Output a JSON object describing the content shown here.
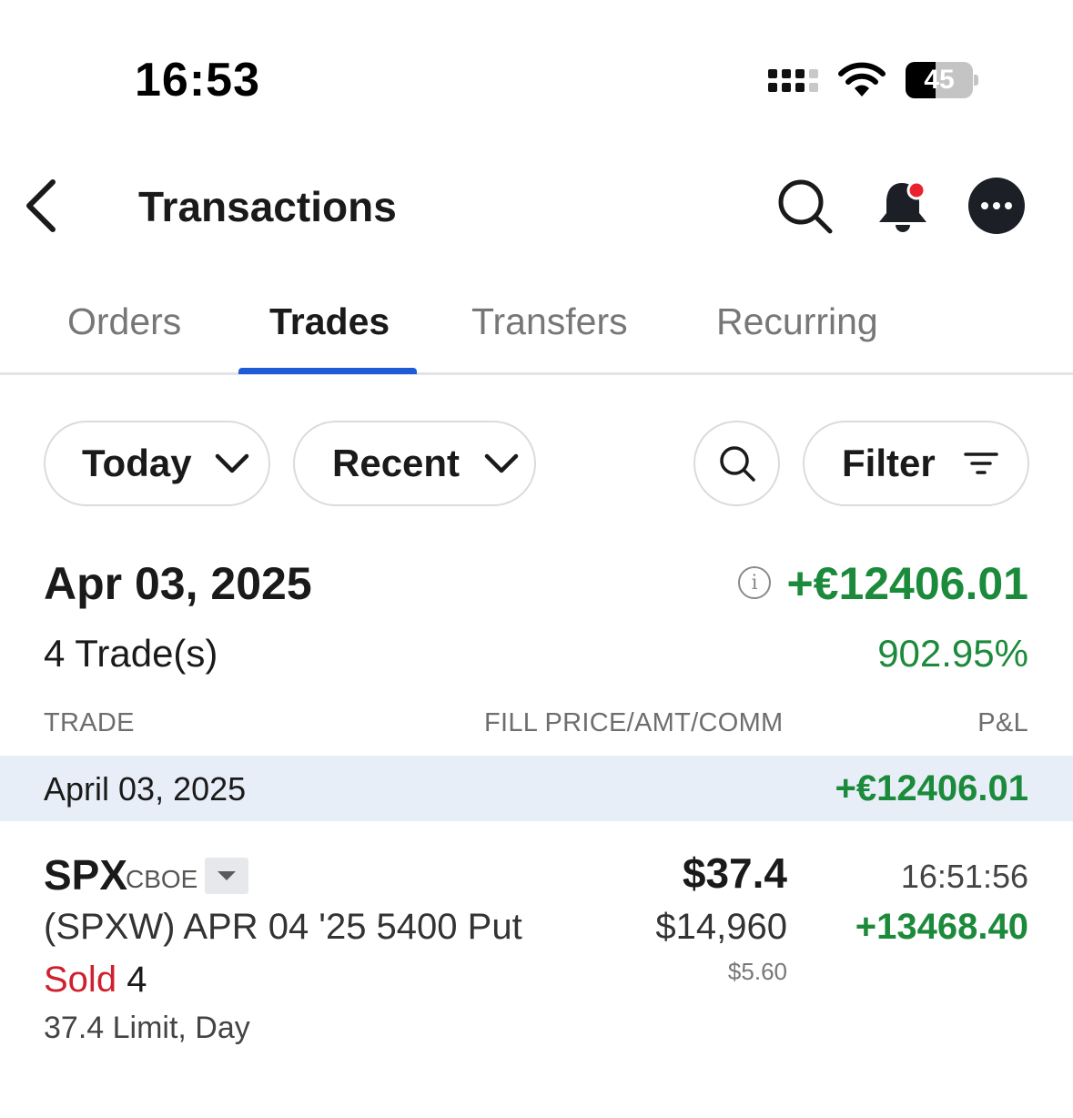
{
  "status_bar": {
    "time": "16:53",
    "battery": "45",
    "battery_level": 0.45
  },
  "header": {
    "title": "Transactions"
  },
  "tabs": [
    {
      "label": "Orders",
      "active": false
    },
    {
      "label": "Trades",
      "active": true
    },
    {
      "label": "Transfers",
      "active": false
    },
    {
      "label": "Recurring",
      "active": false
    }
  ],
  "filters": {
    "period": "Today",
    "sort": "Recent",
    "filter_label": "Filter"
  },
  "summary": {
    "date": "Apr 03, 2025",
    "trade_count": "4 Trade(s)",
    "pl": "+€12406.01",
    "pl_percent": "902.95%"
  },
  "columns": {
    "trade": "TRADE",
    "fill": "FILL PRICE/AMT/COMM",
    "pl": "P&L"
  },
  "group": {
    "date": "April 03, 2025",
    "pl": "+€12406.01"
  },
  "trade": {
    "symbol": "SPX",
    "exchange": "CBOE",
    "contract": "(SPXW) APR 04 '25 5400 Put",
    "side": "Sold",
    "quantity": "4",
    "order_type": "37.4 Limit, Day",
    "fill_price": "$37.4",
    "amount": "$14,960",
    "commission": "$5.60",
    "time": "16:51:56",
    "pl": "+13468.40"
  },
  "colors": {
    "accent": "#1f5bd6",
    "positive": "#1c8a3b",
    "negative": "#d0202e",
    "notification": "#e8232e"
  }
}
